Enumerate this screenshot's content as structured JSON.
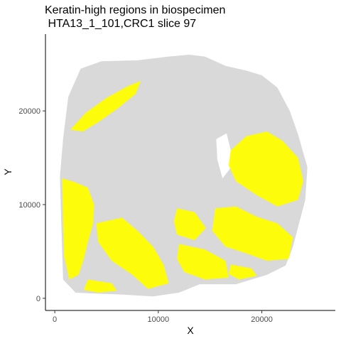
{
  "chart_data": {
    "type": "scatter",
    "title_line1": "Keratin-high regions in biospecimen",
    "title_line2": " HTA13_1_101,CRC1 slice 97",
    "xlabel": "X",
    "ylabel": "Y",
    "xlim": [
      -900,
      27100
    ],
    "ylim": [
      -1300,
      28200
    ],
    "x_ticks": [
      0,
      10000,
      20000
    ],
    "x_tick_labels": [
      "0",
      "10000",
      "20000"
    ],
    "y_ticks": [
      0,
      10000,
      20000
    ],
    "y_tick_labels": [
      "0",
      "10000",
      "20000"
    ],
    "grid": false,
    "legend": "none",
    "colors": {
      "background_cells": "#d9d9d9",
      "keratin_high": "#ffff00",
      "axis": "#000000",
      "tick_text": "#4d4d4d"
    },
    "series": [
      {
        "role": "background",
        "color": "#d9d9d9",
        "outline": [
          [
            800,
            2000
          ],
          [
            700,
            5500
          ],
          [
            600,
            9000
          ],
          [
            500,
            13000
          ],
          [
            800,
            17000
          ],
          [
            1300,
            21500
          ],
          [
            2500,
            24500
          ],
          [
            4500,
            25300
          ],
          [
            8000,
            25400
          ],
          [
            11000,
            25800
          ],
          [
            13000,
            26000
          ],
          [
            14500,
            25800
          ],
          [
            16500,
            24800
          ],
          [
            18500,
            24300
          ],
          [
            20000,
            23800
          ],
          [
            21500,
            22500
          ],
          [
            22700,
            20000
          ],
          [
            23500,
            17500
          ],
          [
            24400,
            14000
          ],
          [
            24200,
            10500
          ],
          [
            23600,
            8000
          ],
          [
            23000,
            5500
          ],
          [
            22300,
            3500
          ],
          [
            20500,
            2500
          ],
          [
            17500,
            1500
          ],
          [
            14000,
            1500
          ],
          [
            12000,
            600
          ],
          [
            9500,
            200
          ],
          [
            6500,
            400
          ],
          [
            4000,
            500
          ],
          [
            2000,
            600
          ]
        ],
        "holes": [
          [
            [
              15600,
              17000
            ],
            [
              16600,
              17600
            ],
            [
              17000,
              15800
            ],
            [
              16900,
              13800
            ],
            [
              16200,
              12800
            ],
            [
              15700,
              14800
            ]
          ]
        ]
      },
      {
        "role": "keratin-high regions",
        "color": "#ffff00",
        "regions": [
          [
            [
              1500,
              18000
            ],
            [
              3000,
              19800
            ],
            [
              5000,
              21400
            ],
            [
              7000,
              22600
            ],
            [
              8300,
              23200
            ],
            [
              7800,
              21800
            ],
            [
              6000,
              20200
            ],
            [
              4200,
              18800
            ],
            [
              2700,
              17800
            ]
          ],
          [
            [
              17000,
              15800
            ],
            [
              18500,
              17300
            ],
            [
              20500,
              17800
            ],
            [
              22000,
              16800
            ],
            [
              23500,
              15000
            ],
            [
              24000,
              12500
            ],
            [
              23500,
              10500
            ],
            [
              21500,
              9800
            ],
            [
              19500,
              11000
            ],
            [
              17500,
              12500
            ],
            [
              16800,
              14200
            ]
          ],
          [
            [
              700,
              12800
            ],
            [
              1900,
              12400
            ],
            [
              3200,
              11800
            ],
            [
              3800,
              10000
            ],
            [
              3700,
              8000
            ],
            [
              3200,
              6000
            ],
            [
              2800,
              4200
            ],
            [
              2300,
              2500
            ],
            [
              1400,
              2000
            ],
            [
              900,
              4500
            ],
            [
              800,
              8000
            ]
          ],
          [
            [
              3200,
              2000
            ],
            [
              5500,
              1600
            ],
            [
              6000,
              800
            ],
            [
              4200,
              600
            ],
            [
              2800,
              900
            ]
          ],
          [
            [
              4000,
              8000
            ],
            [
              6500,
              8600
            ],
            [
              8000,
              7200
            ],
            [
              9500,
              5500
            ],
            [
              10500,
              3600
            ],
            [
              11000,
              1600
            ],
            [
              9000,
              1000
            ],
            [
              7500,
              2500
            ],
            [
              5500,
              4000
            ],
            [
              4200,
              6000
            ]
          ],
          [
            [
              11800,
              9600
            ],
            [
              13500,
              9200
            ],
            [
              14600,
              7500
            ],
            [
              13500,
              6200
            ],
            [
              11800,
              6800
            ],
            [
              11500,
              8200
            ]
          ],
          [
            [
              15500,
              9600
            ],
            [
              17500,
              9800
            ],
            [
              19500,
              8700
            ],
            [
              21500,
              8000
            ],
            [
              23000,
              6500
            ],
            [
              22600,
              4200
            ],
            [
              20500,
              4000
            ],
            [
              18500,
              4800
            ],
            [
              16500,
              5500
            ],
            [
              15200,
              7200
            ]
          ],
          [
            [
              12000,
              5800
            ],
            [
              14500,
              5200
            ],
            [
              16500,
              4000
            ],
            [
              16800,
              2200
            ],
            [
              14500,
              2000
            ],
            [
              12500,
              2800
            ],
            [
              11800,
              4200
            ]
          ],
          [
            [
              17000,
              3600
            ],
            [
              19000,
              3200
            ],
            [
              19500,
              2400
            ],
            [
              17800,
              2000
            ],
            [
              16800,
              2600
            ]
          ]
        ]
      }
    ]
  }
}
